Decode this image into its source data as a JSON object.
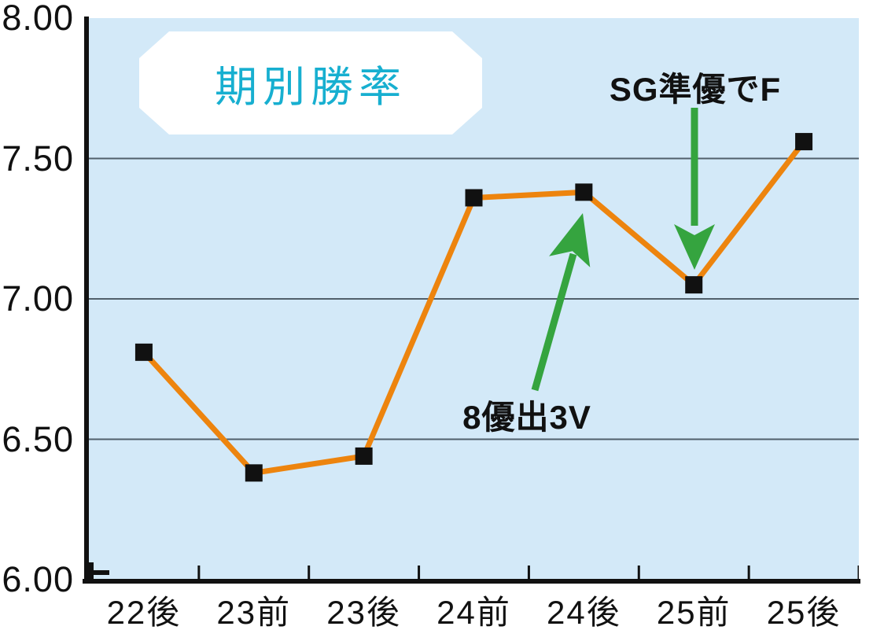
{
  "chart_data": {
    "type": "line",
    "title": "期別勝率",
    "categories": [
      "22後",
      "23前",
      "23後",
      "24前",
      "24後",
      "25前",
      "25後"
    ],
    "series": [
      {
        "name": "期別勝率",
        "values": [
          6.81,
          6.38,
          6.44,
          7.36,
          7.38,
          7.05,
          7.56
        ]
      }
    ],
    "xlabel": "",
    "ylabel": "",
    "ylim": [
      6.0,
      8.0
    ],
    "y_ticks": [
      {
        "label": "8.00",
        "value": 8.0
      },
      {
        "label": "7.50",
        "value": 7.5
      },
      {
        "label": "7.00",
        "value": 7.0
      },
      {
        "label": "6.50",
        "value": 6.5
      },
      {
        "label": "6.00",
        "value": 6.0
      }
    ],
    "gridlines": [
      7.5,
      7.0,
      6.5
    ],
    "grid": "horizontal-on",
    "legend": "none",
    "marker": "black-square",
    "annotations": [
      {
        "text": "8優出3V",
        "target": "24後",
        "arrow_direction": "up-right"
      },
      {
        "text": "SG準優でF",
        "target": "25前",
        "arrow_direction": "down"
      }
    ],
    "colors": {
      "line": "#ED840E",
      "marker": "#111111",
      "plot_background": "#D3E9F8",
      "gridline": "#51606B",
      "annotation_arrow": "#35A43F",
      "title_text": "#17AFD0",
      "axis": "#111111"
    }
  }
}
